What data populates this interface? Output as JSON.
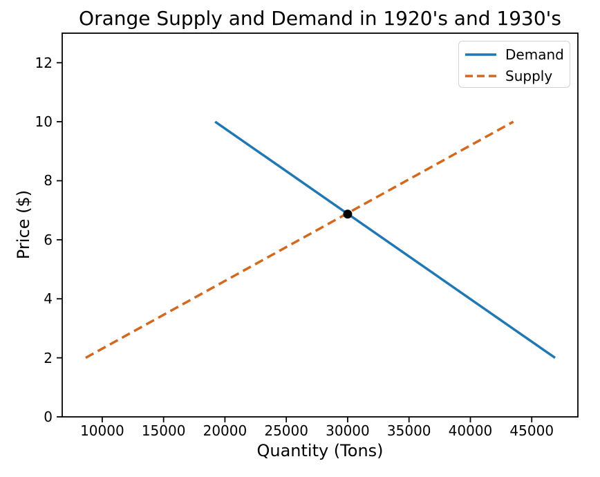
{
  "chart_data": {
    "type": "line",
    "title": "Orange Supply and Demand in 1920's and 1930's",
    "xlabel": "Quantity (Tons)",
    "ylabel": "Price ($)",
    "xlim": [
      6740,
      48760
    ],
    "ylim": [
      0,
      13
    ],
    "xticks": [
      10000,
      15000,
      20000,
      25000,
      30000,
      35000,
      40000,
      45000
    ],
    "yticks": [
      0,
      2,
      4,
      6,
      8,
      10,
      12
    ],
    "grid": false,
    "legend_position": "upper right",
    "background_color": "#ffffff",
    "axis_color": "#000000",
    "series": [
      {
        "name": "Demand",
        "color": "#1f77b4",
        "style": "solid",
        "x": [
          19200,
          46900
        ],
        "y": [
          10,
          2
        ]
      },
      {
        "name": "Supply",
        "color": "#d2691e",
        "style": "dashed",
        "x": [
          8650,
          43500
        ],
        "y": [
          2,
          10
        ]
      }
    ],
    "annotations": [
      {
        "name": "equilibrium-point",
        "marker": "circle",
        "color": "#000000",
        "x": 30000,
        "y": 6.87
      }
    ]
  }
}
